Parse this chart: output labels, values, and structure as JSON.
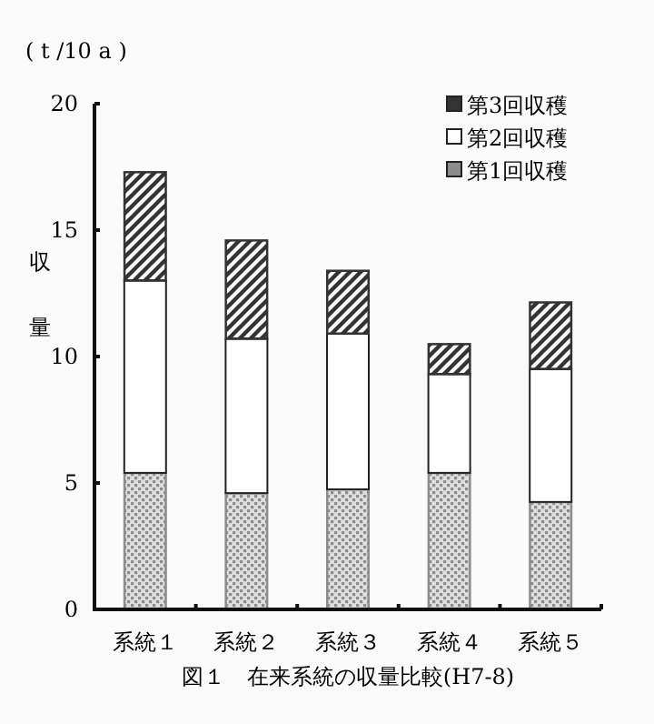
{
  "chart_data": {
    "type": "bar",
    "stacked": true,
    "title": "図１　在来系統の収量比較(H7-8)",
    "ylabel": "収量",
    "annotations": [
      "( t /10 a )"
    ],
    "categories": [
      "系統１",
      "系統２",
      "系統３",
      "系統４",
      "系統５"
    ],
    "series": [
      {
        "name": "第1回収穫",
        "color": "#8c8c8c",
        "values": [
          5.4,
          4.6,
          4.75,
          5.4,
          4.25
        ]
      },
      {
        "name": "第2回収穫",
        "color": "#ffffff",
        "values": [
          7.6,
          6.1,
          6.15,
          3.9,
          5.25
        ]
      },
      {
        "name": "第3回収穫",
        "color": "#333333",
        "values": [
          4.3,
          3.9,
          2.5,
          1.2,
          2.65
        ]
      }
    ],
    "ylim": [
      0,
      20
    ],
    "yticks": [
      0,
      5,
      10,
      15,
      20
    ],
    "grid": false,
    "legend": "top right"
  }
}
